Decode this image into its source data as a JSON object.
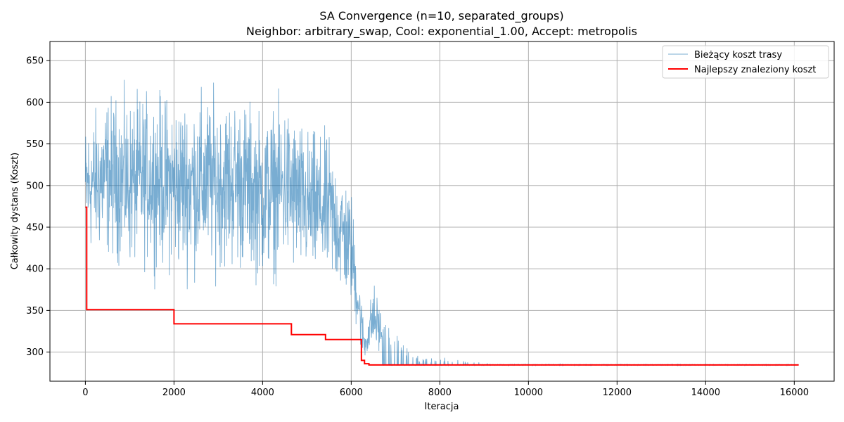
{
  "chart_data": {
    "type": "line",
    "title": "SA Convergence (n=10, separated_groups)",
    "subtitle": "Neighbor: arbitrary_swap, Cool: exponential_1.00, Accept: metropolis",
    "xlabel": "Iteracja",
    "ylabel": "Całkowity dystans (Koszt)",
    "xlim": [
      -800,
      16900
    ],
    "ylim": [
      265,
      673
    ],
    "xticks": [
      0,
      2000,
      4000,
      6000,
      8000,
      10000,
      12000,
      14000,
      16000
    ],
    "yticks": [
      300,
      350,
      400,
      450,
      500,
      550,
      600,
      650
    ],
    "grid": true,
    "legend_position": "top-right",
    "series": [
      {
        "name": "Bieżący koszt trasy",
        "color": "#1f77b4",
        "style": "thin noisy line",
        "envelope_x": [
          0,
          500,
          1000,
          1500,
          2000,
          2500,
          3000,
          3500,
          4000,
          4500,
          5000,
          5500,
          6000,
          6200,
          6300,
          6500,
          6700,
          7000,
          7500,
          8000,
          9000,
          10000,
          16100
        ],
        "envelope_low": [
          390,
          380,
          365,
          370,
          355,
          355,
          360,
          360,
          350,
          360,
          350,
          350,
          330,
          290,
          285,
          285,
          284,
          284,
          284,
          284,
          284,
          284,
          284
        ],
        "envelope_high": [
          605,
          645,
          640,
          650,
          645,
          650,
          650,
          645,
          625,
          640,
          600,
          590,
          520,
          400,
          330,
          400,
          360,
          330,
          300,
          295,
          287,
          286,
          285
        ]
      },
      {
        "name": "Najlepszy znaleziony koszt",
        "color": "#ff0000",
        "style": "step",
        "x": [
          0,
          30,
          2000,
          4650,
          5420,
          6230,
          6300,
          6400,
          16100
        ],
        "y": [
          474,
          351,
          334,
          321,
          315,
          290,
          286,
          284.5,
          284.5
        ]
      }
    ]
  }
}
